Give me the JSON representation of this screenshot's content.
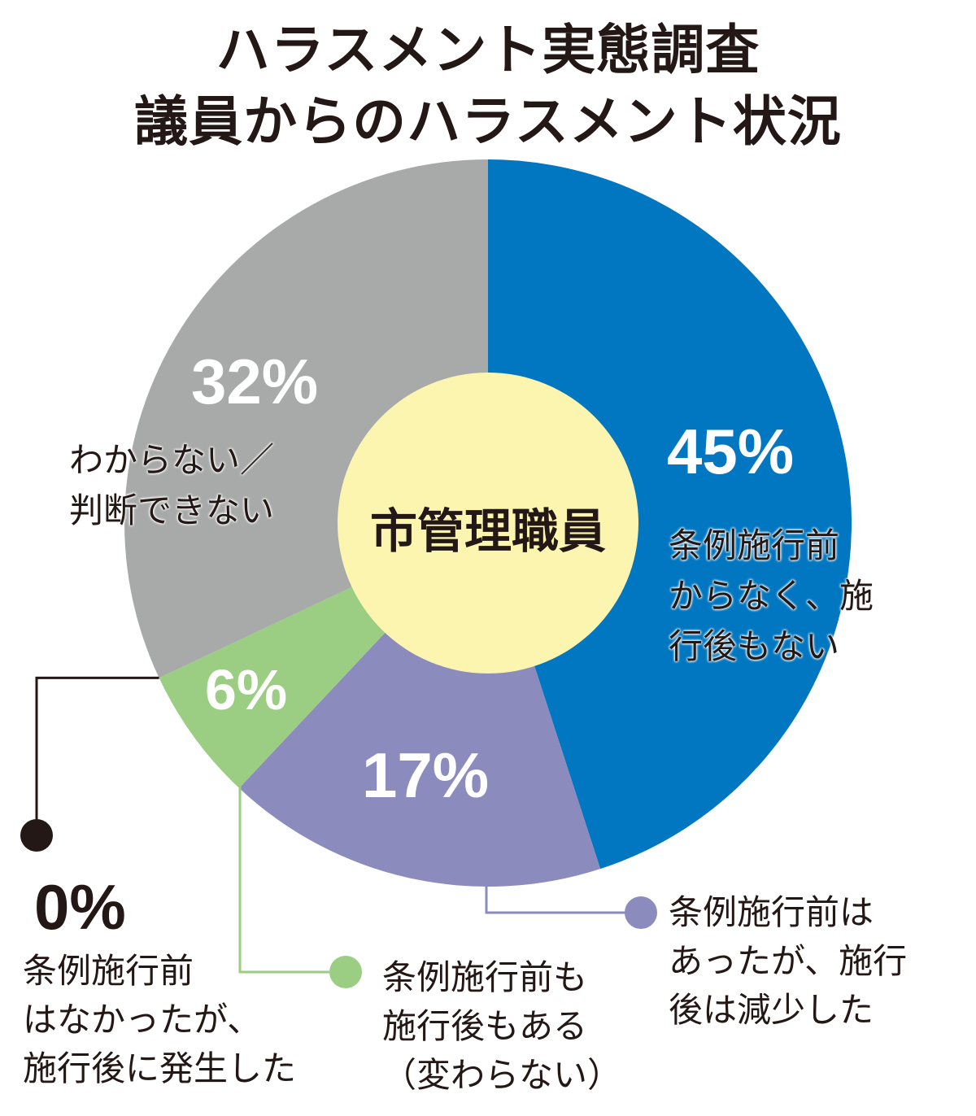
{
  "chart_data": {
    "type": "pie",
    "title": [
      "ハラスメント実態調査",
      "議員からのハラスメント状況"
    ],
    "center_label": "市管理職員",
    "slices": [
      {
        "label": "条例施行前からなく、施行後もない",
        "label_lines": [
          "条例施行前",
          "からなく、施",
          "行後もない"
        ],
        "value": 45,
        "value_text": "45%",
        "color": "#0077c0"
      },
      {
        "label": "条例施行前はあったが、施行後は減少した",
        "label_lines": [
          "条例施行前は",
          "あったが、施行",
          "後は減少した"
        ],
        "value": 17,
        "value_text": "17%",
        "color": "#8b8bbd"
      },
      {
        "label": "条例施行前も施行後もある（変わらない）",
        "label_lines": [
          "条例施行前も",
          "施行後もある",
          "（変わらない）"
        ],
        "value": 6,
        "value_text": "6%",
        "color": "#9bcd83"
      },
      {
        "label": "条例施行前はなかったが、施行後に発生した",
        "label_lines": [
          "条例施行前",
          "はなかったが、",
          "施行後に発生した"
        ],
        "value": 0,
        "value_text": "0%",
        "color": "#231815"
      },
      {
        "label": "わからない／判断できない",
        "label_lines": [
          "わからない／",
          "判断できない"
        ],
        "value": 32,
        "value_text": "32%",
        "color": "#a8aaaa"
      }
    ],
    "center_color": "#fbf5b0"
  }
}
